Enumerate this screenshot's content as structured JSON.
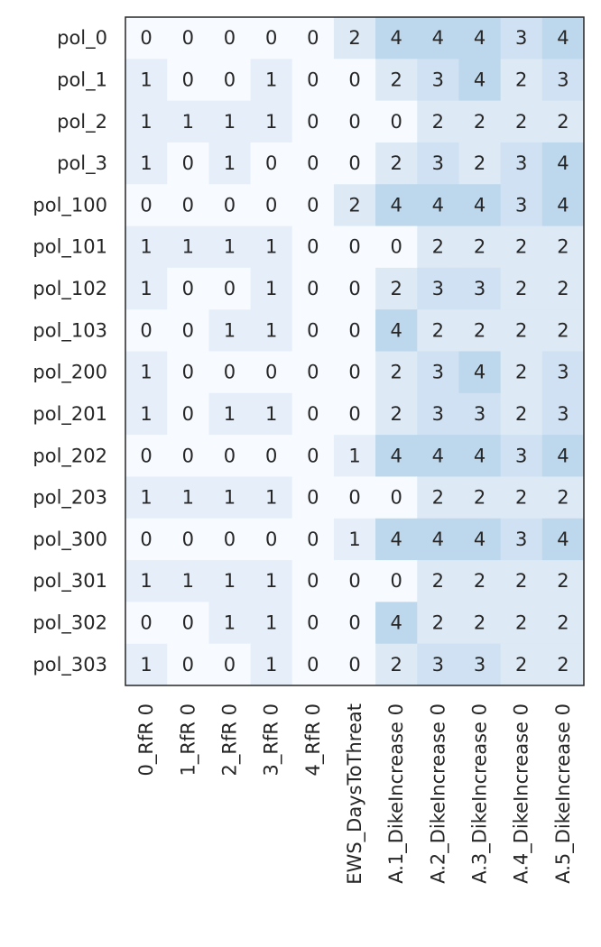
{
  "chart_data": {
    "type": "heatmap",
    "title": "",
    "xlabel": "",
    "ylabel": "",
    "rows": [
      "pol_0",
      "pol_1",
      "pol_2",
      "pol_3",
      "pol_100",
      "pol_101",
      "pol_102",
      "pol_103",
      "pol_200",
      "pol_201",
      "pol_202",
      "pol_203",
      "pol_300",
      "pol_301",
      "pol_302",
      "pol_303"
    ],
    "columns": [
      "0_RfR 0",
      "1_RfR 0",
      "2_RfR 0",
      "3_RfR 0",
      "4_RfR 0",
      "EWS_DaysToThreat",
      "A.1_DikeIncrease 0",
      "A.2_DikeIncrease 0",
      "A.3_DikeIncrease 0",
      "A.4_DikeIncrease 0",
      "A.5_DikeIncrease 0"
    ],
    "values": [
      [
        0,
        0,
        0,
        0,
        0,
        2,
        4,
        4,
        4,
        3,
        4
      ],
      [
        1,
        0,
        0,
        1,
        0,
        0,
        2,
        3,
        4,
        2,
        3
      ],
      [
        1,
        1,
        1,
        1,
        0,
        0,
        0,
        2,
        2,
        2,
        2
      ],
      [
        1,
        0,
        1,
        0,
        0,
        0,
        2,
        3,
        2,
        3,
        4
      ],
      [
        0,
        0,
        0,
        0,
        0,
        2,
        4,
        4,
        4,
        3,
        4
      ],
      [
        1,
        1,
        1,
        1,
        0,
        0,
        0,
        2,
        2,
        2,
        2
      ],
      [
        1,
        0,
        0,
        1,
        0,
        0,
        2,
        3,
        3,
        2,
        2
      ],
      [
        0,
        0,
        1,
        1,
        0,
        0,
        4,
        2,
        2,
        2,
        2
      ],
      [
        1,
        0,
        0,
        0,
        0,
        0,
        2,
        3,
        4,
        2,
        3
      ],
      [
        1,
        0,
        1,
        1,
        0,
        0,
        2,
        3,
        3,
        2,
        3
      ],
      [
        0,
        0,
        0,
        0,
        0,
        1,
        4,
        4,
        4,
        3,
        4
      ],
      [
        1,
        1,
        1,
        1,
        0,
        0,
        0,
        2,
        2,
        2,
        2
      ],
      [
        0,
        0,
        0,
        0,
        0,
        1,
        4,
        4,
        4,
        3,
        4
      ],
      [
        1,
        1,
        1,
        1,
        0,
        0,
        0,
        2,
        2,
        2,
        2
      ],
      [
        0,
        0,
        1,
        1,
        0,
        0,
        4,
        2,
        2,
        2,
        2
      ],
      [
        1,
        0,
        0,
        1,
        0,
        0,
        2,
        3,
        3,
        2,
        2
      ]
    ],
    "color_scale": {
      "colors": [
        "#f7fbff",
        "#e6eff9",
        "#dde9f5",
        "#cfe1f2",
        "#bdd7ec"
      ],
      "vmin": 0,
      "vmax": 4
    },
    "annotations": true,
    "grid": false
  }
}
